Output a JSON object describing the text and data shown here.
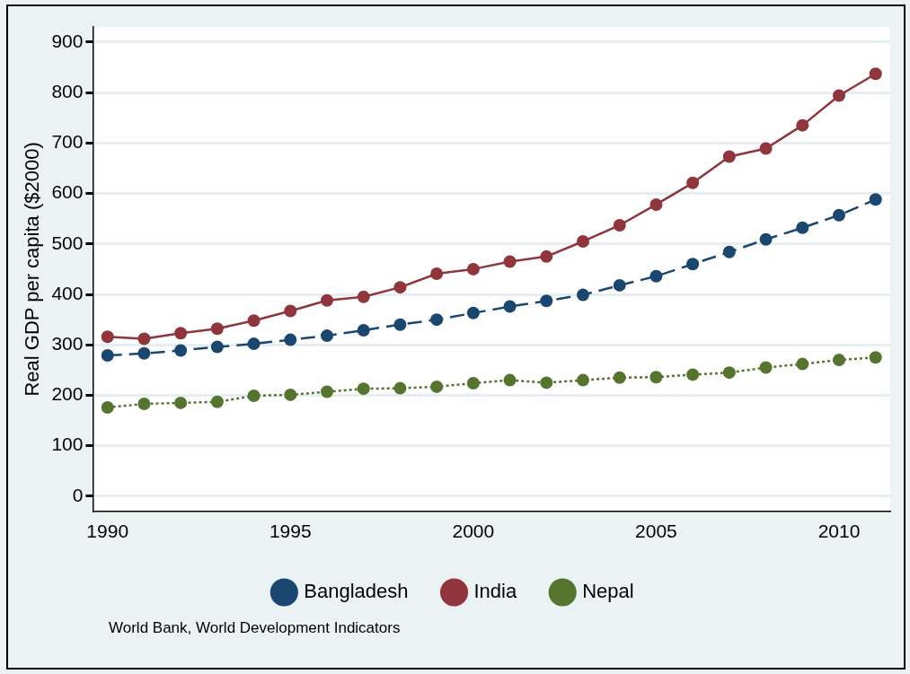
{
  "chart_data": {
    "type": "line",
    "ylabel": "Real GDP per capita ($2000)",
    "annotations": [
      "World Bank, World Development Indicators"
    ],
    "x": [
      1990,
      1991,
      1992,
      1993,
      1994,
      1995,
      1996,
      1997,
      1998,
      1999,
      2000,
      2001,
      2002,
      2003,
      2004,
      2005,
      2006,
      2007,
      2008,
      2009,
      2010,
      2011
    ],
    "series": [
      {
        "name": "Bangladesh",
        "color": "#1a476f",
        "line_style": "dashed",
        "values": [
          279,
          283,
          289,
          296,
          302,
          310,
          318,
          329,
          340,
          350,
          363,
          376,
          387,
          399,
          418,
          436,
          460,
          484,
          509,
          532,
          557,
          588
        ]
      },
      {
        "name": "India",
        "color": "#90353b",
        "line_style": "solid",
        "values": [
          316,
          312,
          323,
          332,
          348,
          367,
          388,
          395,
          414,
          441,
          450,
          465,
          475,
          505,
          537,
          578,
          621,
          673,
          689,
          735,
          794,
          837
        ]
      },
      {
        "name": "Nepal",
        "color": "#55752f",
        "line_style": "dotted",
        "values": [
          176,
          183,
          185,
          187,
          199,
          201,
          207,
          213,
          214,
          217,
          224,
          230,
          225,
          230,
          235,
          236,
          241,
          245,
          255,
          262,
          270,
          275
        ]
      }
    ],
    "xlim": [
      1989.6,
      2011.4
    ],
    "xticks": [
      1990,
      1995,
      2000,
      2005,
      2010
    ],
    "ylim": [
      -30,
      930
    ],
    "yticks": [
      0,
      100,
      200,
      300,
      400,
      500,
      600,
      700,
      800,
      900
    ],
    "grid": "y",
    "legend": "bottom",
    "marker": "circle"
  }
}
